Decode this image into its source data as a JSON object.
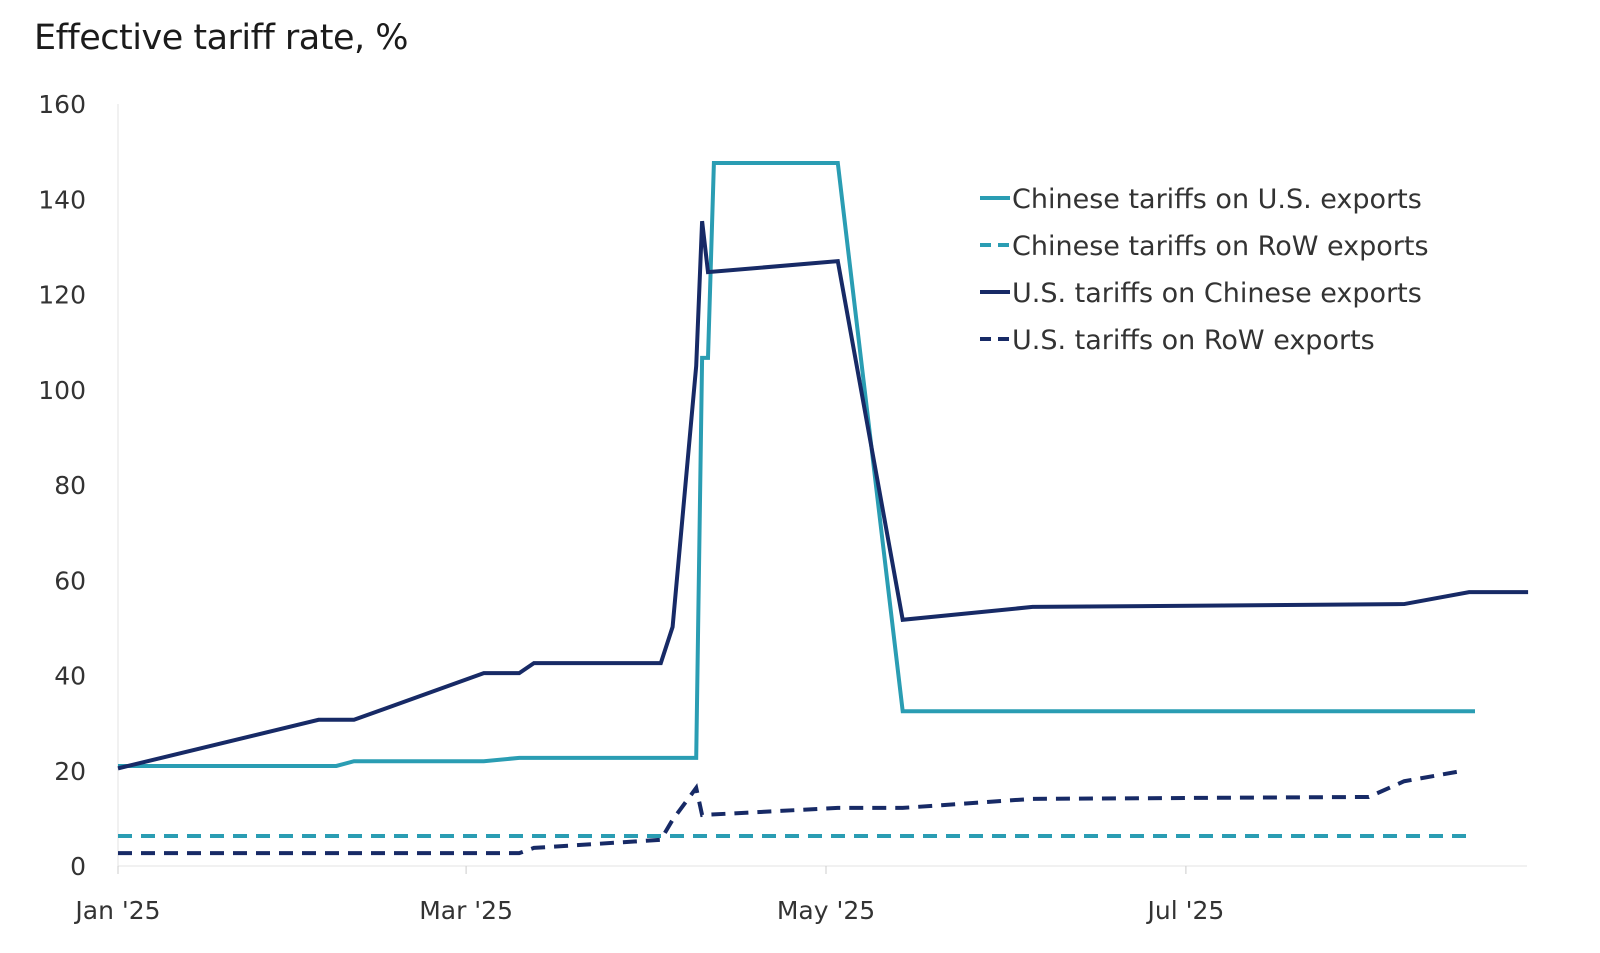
{
  "chart_data": {
    "type": "line",
    "title": "Effective tariff rate, %",
    "xlabel": "",
    "ylabel": "",
    "x_unit": "days since Jan 1, 2025",
    "xlim": [
      0,
      240
    ],
    "ylim": [
      0,
      160
    ],
    "yticks": [
      0,
      20,
      40,
      60,
      80,
      100,
      120,
      140,
      160
    ],
    "xticks": [
      {
        "day": 0,
        "label": "Jan '25"
      },
      {
        "day": 59,
        "label": "Mar '25"
      },
      {
        "day": 120,
        "label": "May '25"
      },
      {
        "day": 181,
        "label": "Jul '25"
      }
    ],
    "grid": false,
    "legend_position": "top-right",
    "series": [
      {
        "name": "Chinese tariffs on U.S. exports",
        "color": "#2a9db3",
        "dash": false,
        "points": [
          [
            0,
            21
          ],
          [
            37,
            21
          ],
          [
            40,
            22
          ],
          [
            62,
            22
          ],
          [
            68,
            22.7
          ],
          [
            98,
            22.7
          ],
          [
            99,
            106.7
          ],
          [
            100,
            106.7
          ],
          [
            101,
            147.6
          ],
          [
            122,
            147.6
          ],
          [
            133,
            32.5
          ],
          [
            230,
            32.5
          ]
        ]
      },
      {
        "name": "Chinese tariffs on RoW exports",
        "color": "#2a9db3",
        "dash": true,
        "points": [
          [
            0,
            6.3
          ],
          [
            230,
            6.3
          ]
        ]
      },
      {
        "name": "U.S. tariffs on Chinese exports",
        "color": "#172a66",
        "dash": false,
        "points": [
          [
            0,
            20.5
          ],
          [
            34,
            30.7
          ],
          [
            40,
            30.7
          ],
          [
            62,
            40.5
          ],
          [
            68,
            40.5
          ],
          [
            70.5,
            42.6
          ],
          [
            92,
            42.6
          ],
          [
            94,
            50.2
          ],
          [
            98,
            105
          ],
          [
            99,
            135.4
          ],
          [
            100,
            124.7
          ],
          [
            122,
            127
          ],
          [
            133,
            51.7
          ],
          [
            155,
            54.4
          ],
          [
            218,
            55
          ],
          [
            229,
            57.5
          ],
          [
            239,
            57.5
          ]
        ]
      },
      {
        "name": "U.S. tariffs on RoW exports",
        "color": "#172a66",
        "dash": true,
        "points": [
          [
            0,
            2.7
          ],
          [
            68,
            2.7
          ],
          [
            70.5,
            3.8
          ],
          [
            92,
            5.5
          ],
          [
            94,
            9.7
          ],
          [
            98,
            16.4
          ],
          [
            99,
            10.7
          ],
          [
            122,
            12.2
          ],
          [
            133,
            12.2
          ],
          [
            155,
            14.1
          ],
          [
            212,
            14.5
          ],
          [
            218,
            17.8
          ],
          [
            228,
            20
          ]
        ]
      }
    ]
  }
}
